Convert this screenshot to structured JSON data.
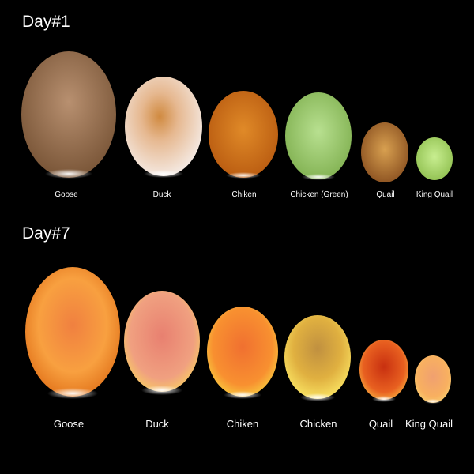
{
  "sections": [
    {
      "title": "Day#1",
      "eggs": [
        "Goose",
        "Duck",
        "Chiken",
        "Chicken (Green)",
        "Quail",
        "King Quail"
      ]
    },
    {
      "title": "Day#7",
      "eggs": [
        "Goose",
        "Duck",
        "Chiken",
        "Chicken",
        "Quail",
        "King Quail"
      ]
    }
  ]
}
